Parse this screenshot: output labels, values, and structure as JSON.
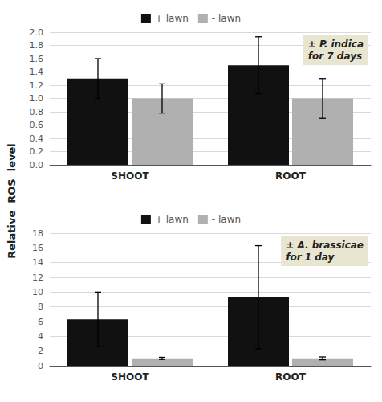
{
  "chart_data": [
    {
      "type": "bar",
      "categories": [
        "SHOOT",
        "ROOT"
      ],
      "series": [
        {
          "name": "+ lawn",
          "color": "#111111",
          "values": [
            1.3,
            1.5
          ],
          "errors": [
            0.3,
            0.43
          ]
        },
        {
          "name": "- lawn",
          "color": "#b0b0b0",
          "values": [
            1.0,
            1.0
          ],
          "errors": [
            0.22,
            0.3
          ]
        }
      ],
      "ylim": [
        0,
        2
      ],
      "yticks": [
        {
          "value": 0,
          "label": "0.0"
        },
        0.2,
        0.4,
        0.6,
        0.8,
        {
          "value": 1.0,
          "label": "1.0"
        },
        1.2,
        1.4,
        1.6,
        1.8,
        {
          "value": 2.0,
          "label": "2.0"
        }
      ],
      "ylabel": "Relative  ROS  level",
      "annotation": "± P. indica\nfor 7 days",
      "grid": true,
      "legend": "upper center"
    },
    {
      "type": "bar",
      "categories": [
        "SHOOT",
        "ROOT"
      ],
      "series": [
        {
          "name": "+ lawn",
          "color": "#111111",
          "values": [
            6.3,
            9.3
          ],
          "errors": [
            3.7,
            7.0
          ]
        },
        {
          "name": "- lawn",
          "color": "#b0b0b0",
          "values": [
            1.0,
            1.0
          ],
          "errors": [
            0.15,
            0.2
          ]
        }
      ],
      "ylim": [
        0,
        18
      ],
      "yticks": [
        0,
        2,
        4,
        6,
        8,
        10,
        12,
        14,
        16,
        18
      ],
      "ylabel": "Relative  ROS  level",
      "annotation": "± A. brassicae\nfor 1 day",
      "grid": true,
      "legend": "upper center"
    }
  ]
}
